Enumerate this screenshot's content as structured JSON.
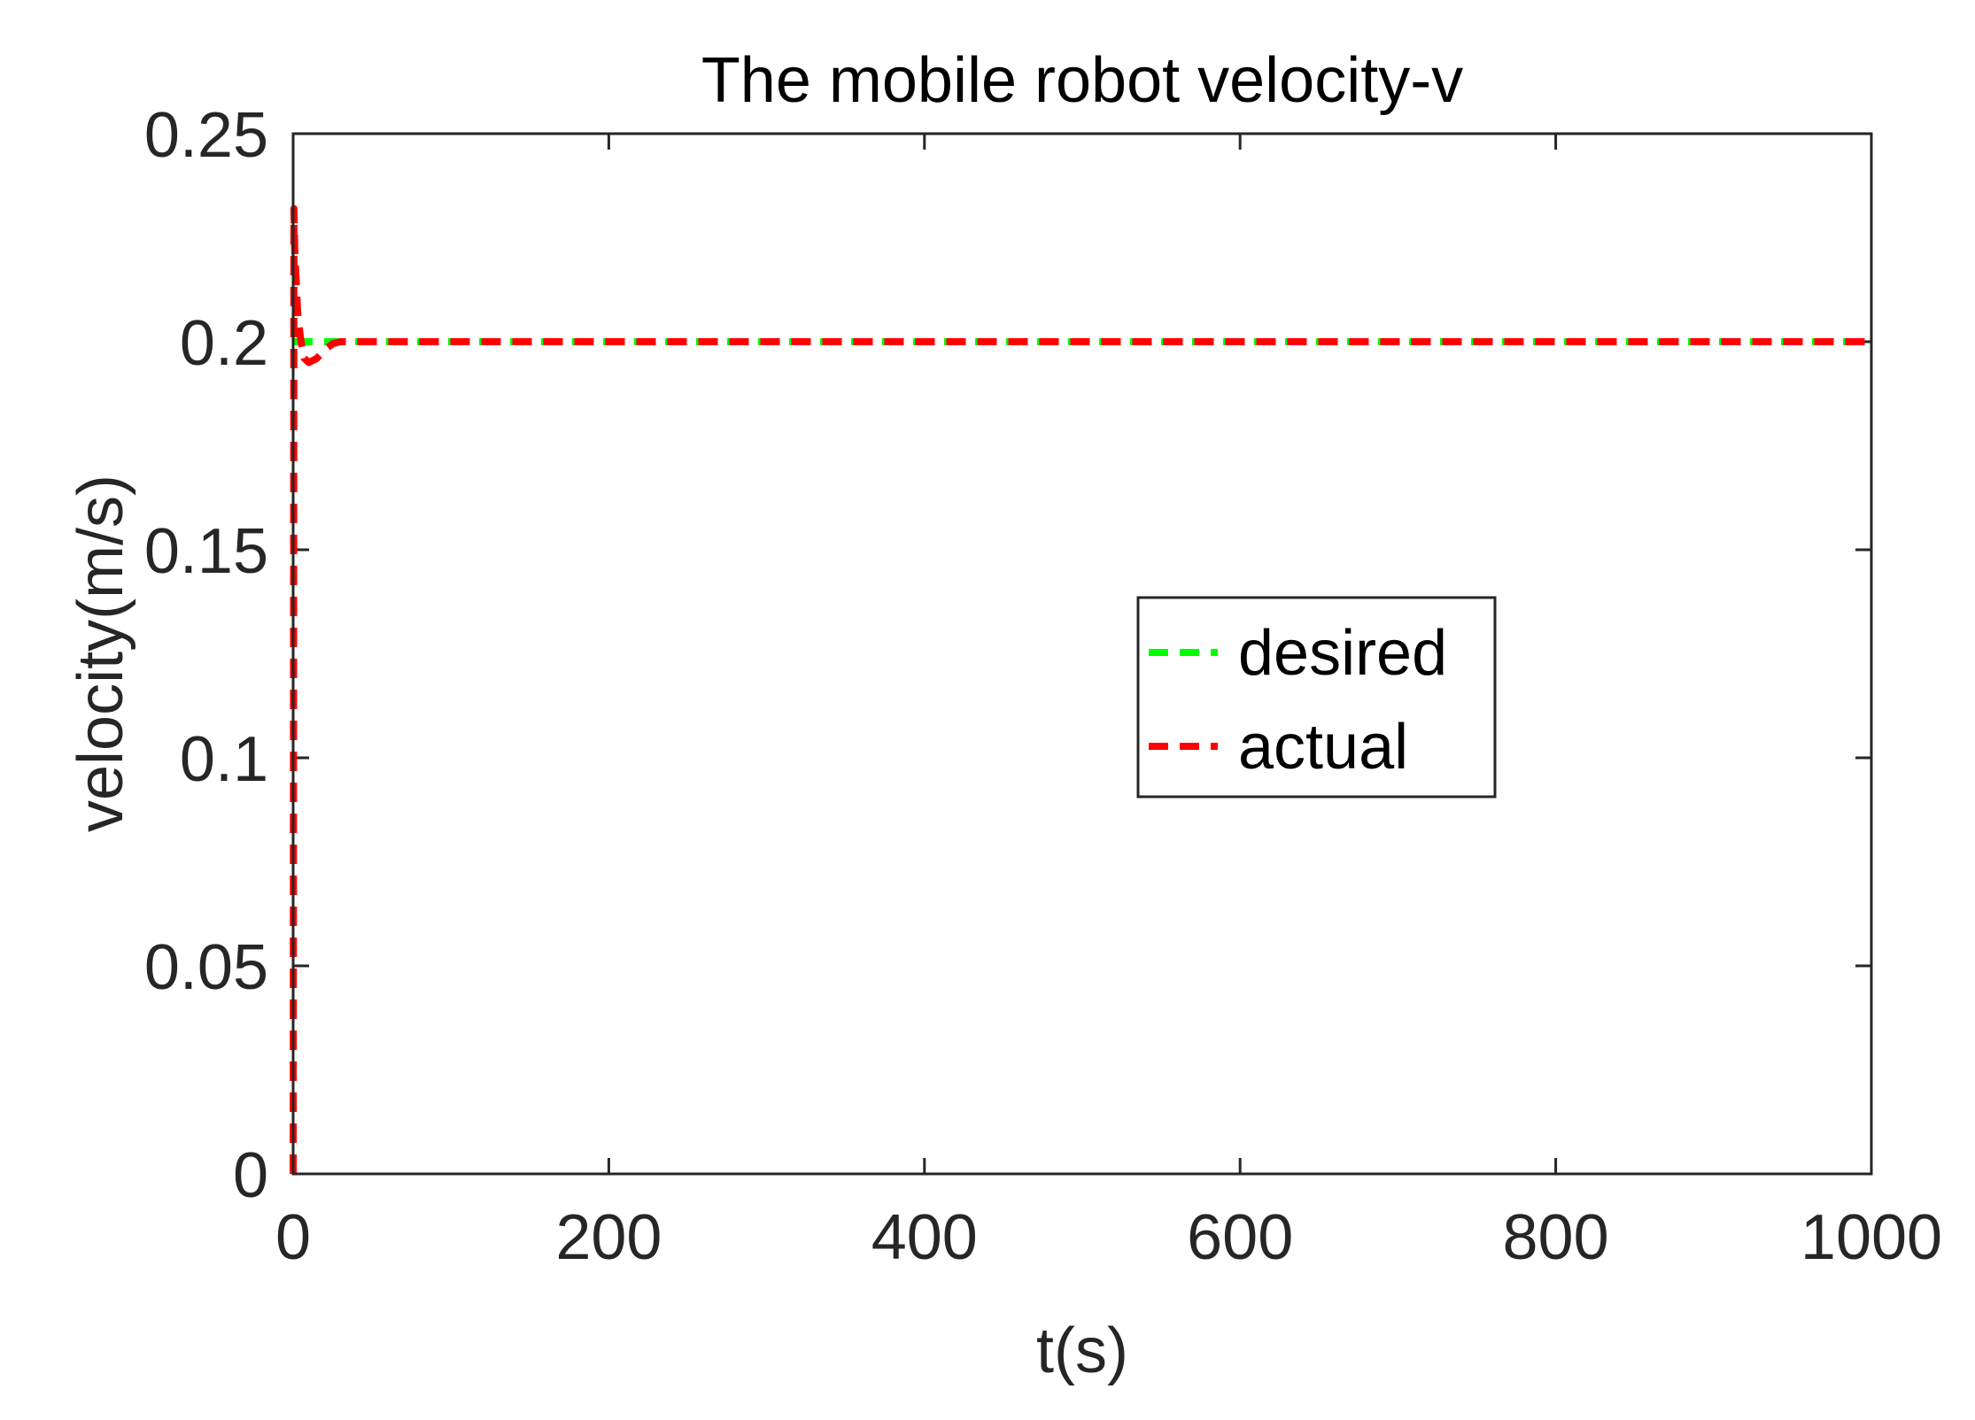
{
  "chart_data": {
    "type": "line",
    "title": "The mobile robot velocity-v",
    "xlabel": "t(s)",
    "ylabel": "velocity(m/s)",
    "xlim": [
      0,
      1000
    ],
    "ylim": [
      0,
      0.25
    ],
    "x_ticks": [
      0,
      200,
      400,
      600,
      800,
      1000
    ],
    "x_tick_labels": [
      "0",
      "200",
      "400",
      "600",
      "800",
      "1000"
    ],
    "y_ticks": [
      0,
      0.05,
      0.1,
      0.15,
      0.2,
      0.25
    ],
    "y_tick_labels": [
      "0",
      "0.05",
      "0.1",
      "0.15",
      "0.2",
      "0.25"
    ],
    "grid": false,
    "legend_position": "center-right",
    "series": [
      {
        "name": "desired",
        "color": "#00ff00",
        "line_style": "dashed",
        "x": [
          0,
          1000
        ],
        "y": [
          0.2,
          0.2
        ]
      },
      {
        "name": "actual",
        "color": "#ff0000",
        "line_style": "dashed",
        "x": [
          0,
          0.5,
          1,
          3,
          5,
          7,
          10,
          15,
          20,
          25,
          30,
          40,
          60,
          100,
          200,
          400,
          600,
          800,
          1000
        ],
        "y": [
          0,
          0.232,
          0.222,
          0.206,
          0.2,
          0.196,
          0.195,
          0.196,
          0.198,
          0.1995,
          0.2,
          0.2,
          0.2,
          0.2,
          0.2,
          0.2,
          0.2,
          0.2,
          0.2
        ]
      }
    ]
  }
}
